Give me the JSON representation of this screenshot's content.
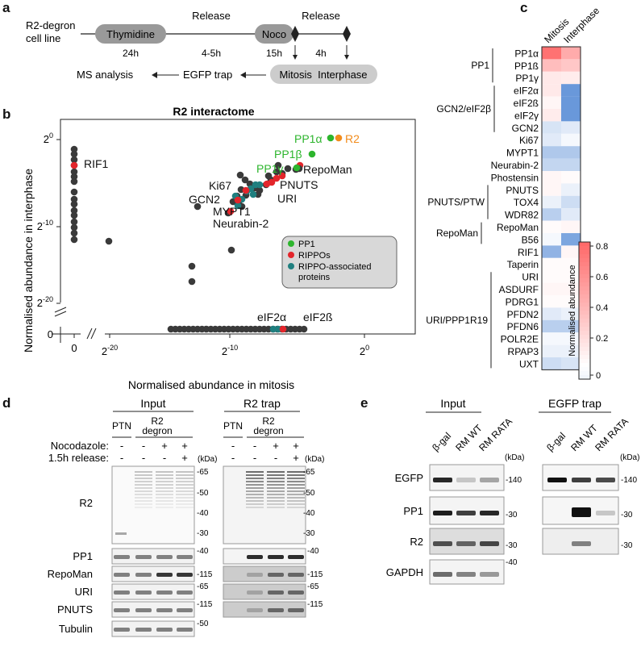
{
  "panel_letters": {
    "a": "a",
    "b": "b",
    "c": "c",
    "d": "d",
    "e": "e"
  },
  "panel_a": {
    "cell_line": [
      "R2-degron",
      "cell line"
    ],
    "thymidine": "Thymidine",
    "thymidine_time": "24h",
    "release1": "Release",
    "release1_time": "4-5h",
    "noco": "Noco",
    "noco_time": "15h",
    "release2": "Release",
    "release2_time": "4h",
    "ms": "MS analysis",
    "trap": "EGFP trap",
    "mitosis_interphase": "Mitosis  Interphase"
  },
  "chart_data": {
    "type": "scatter",
    "title": "R2 interactome",
    "xlabel": "Normalised abundance in mitosis",
    "ylabel": "Normalised abundance in interphase",
    "x_ticks": [
      "0",
      "2-20",
      "2-10",
      "20"
    ],
    "y_ticks": [
      "0",
      "2-20",
      "2-10",
      "20"
    ],
    "legend": [
      {
        "name": "PP1",
        "color": "#2db52d"
      },
      {
        "name": "RIPPOs",
        "color": "#e3252b"
      },
      {
        "name": "RIPPO-associated proteins",
        "color": "#1f7f7f"
      }
    ],
    "labels": [
      {
        "text": "R2",
        "color": "#f28c1c"
      },
      {
        "text": "PP1α",
        "color": "#2db52d"
      },
      {
        "text": "PP1β",
        "color": "#2db52d"
      },
      {
        "text": "PP1γ",
        "color": "#2db52d"
      },
      {
        "text": "RepoMan",
        "color": "#111"
      },
      {
        "text": "PNUTS",
        "color": "#111"
      },
      {
        "text": "Ki67",
        "color": "#111"
      },
      {
        "text": "URI",
        "color": "#111"
      },
      {
        "text": "GCN2",
        "color": "#111"
      },
      {
        "text": "MYPT1",
        "color": "#111"
      },
      {
        "text": "Neurabin-2",
        "color": "#111"
      },
      {
        "text": "RIF1",
        "color": "#111"
      },
      {
        "text": "eIF2α",
        "color": "#111"
      },
      {
        "text": "eIF2ß",
        "color": "#111"
      }
    ]
  },
  "heatmap": {
    "columns": [
      "Mitosis",
      "Interphase"
    ],
    "rows": [
      "PP1α",
      "PP1ß",
      "PP1γ",
      "eIF2α",
      "eIF2ß",
      "eIF2γ",
      "GCN2",
      "Ki67",
      "MYPT1",
      "Neurabin-2",
      "Phostensin",
      "PNUTS",
      "TOX4",
      "WDR82",
      "RepoMan",
      "B56",
      "RIF1",
      "Taperin",
      "URI",
      "ASDURF",
      "PDRG1",
      "PFDN2",
      "PFDN6",
      "POLR2E",
      "RPAP3",
      "UXT"
    ],
    "groups": [
      "PP1",
      "GCN2/eIF2β",
      "PNUTS/PTW",
      "RepoMan",
      "URI/PPP1R19"
    ],
    "values_mitosis": [
      0.75,
      0.35,
      0.12,
      0.12,
      0.05,
      0.1,
      -0.2,
      -0.15,
      -0.4,
      -0.3,
      0.05,
      0.05,
      -0.1,
      -0.35,
      0.02,
      -0.05,
      -0.55,
      0.02,
      0.02,
      0.05,
      0.02,
      -0.15,
      -0.35,
      -0.05,
      -0.1,
      -0.25
    ],
    "values_interphase": [
      0.45,
      0.3,
      0.1,
      -0.75,
      -0.75,
      -0.75,
      -0.15,
      -0.05,
      -0.4,
      -0.3,
      0.02,
      -0.1,
      -0.25,
      -0.15,
      0.05,
      -0.65,
      0.05,
      0.02,
      0.02,
      0.05,
      0.02,
      -0.1,
      -0.35,
      -0.05,
      -0.1,
      -0.2
    ],
    "colorbar_ticks": [
      "0.8",
      "0.6",
      "0.4",
      "0.2",
      "0"
    ],
    "colorbar_label": "Normalised abundance"
  },
  "panel_d": {
    "input_title": "Input",
    "trap_title": "R2 trap",
    "ptn": "PTN",
    "degron": [
      "R2",
      "degron"
    ],
    "noco_label": "Nocodazole:",
    "release_label": "1.5h release:",
    "noco_signs": [
      "-",
      "-",
      "+",
      "+"
    ],
    "release_signs": [
      "-",
      "-",
      "-",
      "+"
    ],
    "kda": "(kDa)",
    "r2_markers": [
      "65",
      "50",
      "40",
      "30"
    ],
    "bands": [
      {
        "name": "R2"
      },
      {
        "name": "PP1",
        "marker": "40"
      },
      {
        "name": "RepoMan",
        "marker": "115"
      },
      {
        "name": "URI",
        "marker": "65"
      },
      {
        "name": "PNUTS",
        "marker": "115"
      },
      {
        "name": "Tubulin",
        "marker": "50"
      }
    ]
  },
  "panel_e": {
    "input_title": "Input",
    "trap_title": "EGFP trap",
    "lanes": [
      "β-gal",
      "RM WT",
      "RM RATA"
    ],
    "kda": "(kDa)",
    "rows": [
      {
        "name": "EGFP",
        "marker": "140"
      },
      {
        "name": "PP1",
        "marker": "30"
      },
      {
        "name": "R2",
        "marker": "30"
      },
      {
        "name": "GAPDH",
        "marker": "40"
      }
    ]
  }
}
